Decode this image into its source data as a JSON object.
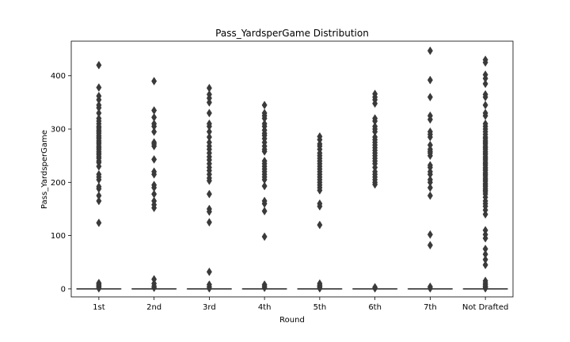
{
  "chart_data": {
    "type": "box",
    "title": "Pass_YardsperGame Distribution",
    "xlabel": "Round",
    "ylabel": "Pass_YardsperGame",
    "ylim": [
      -15,
      465
    ],
    "yticks": [
      0,
      100,
      200,
      300,
      400
    ],
    "categories": [
      "1st",
      "2nd",
      "3rd",
      "4th",
      "5th",
      "6th",
      "7th",
      "Not Drafted"
    ],
    "box_color": "#3a3a3a",
    "grid": false,
    "legend": "none",
    "boxes": [
      {
        "category": "1st",
        "q1": 0,
        "median": 0,
        "q3": 0,
        "whisker_low": 0,
        "whisker_high": 0,
        "outliers": [
          1,
          3,
          5,
          7,
          9,
          11,
          124,
          165,
          175,
          188,
          192,
          205,
          210,
          215,
          230,
          237,
          240,
          245,
          248,
          252,
          255,
          258,
          262,
          265,
          268,
          272,
          275,
          278,
          282,
          285,
          288,
          292,
          295,
          298,
          302,
          305,
          310,
          315,
          320,
          330,
          340,
          345,
          355,
          362,
          378,
          420
        ]
      },
      {
        "category": "2nd",
        "q1": 0,
        "median": 0,
        "q3": 0,
        "whisker_low": 0,
        "whisker_high": 0,
        "outliers": [
          2,
          5,
          10,
          18,
          152,
          158,
          165,
          178,
          190,
          195,
          215,
          220,
          243,
          268,
          272,
          275,
          295,
          305,
          310,
          322,
          335,
          390
        ]
      },
      {
        "category": "3rd",
        "q1": 0,
        "median": 0,
        "q3": 0,
        "whisker_low": 0,
        "whisker_high": 0,
        "outliers": [
          1,
          4,
          8,
          32,
          125,
          145,
          150,
          178,
          203,
          208,
          215,
          222,
          228,
          235,
          242,
          248,
          255,
          262,
          268,
          275,
          285,
          295,
          305,
          310,
          330,
          350,
          358,
          365,
          377
        ]
      },
      {
        "category": "4th",
        "q1": 0,
        "median": 0,
        "q3": 0,
        "whisker_low": 0,
        "whisker_high": 0,
        "outliers": [
          2,
          5,
          8,
          98,
          146,
          160,
          165,
          193,
          205,
          210,
          215,
          220,
          225,
          230,
          235,
          240,
          258,
          262,
          268,
          275,
          282,
          288,
          292,
          298,
          305,
          310,
          320,
          325,
          330,
          345
        ]
      },
      {
        "category": "5th",
        "q1": 0,
        "median": 0,
        "q3": 0,
        "whisker_low": 0,
        "whisker_high": 0,
        "outliers": [
          1,
          3,
          5,
          7,
          10,
          120,
          155,
          160,
          185,
          190,
          195,
          200,
          205,
          210,
          215,
          220,
          225,
          230,
          235,
          240,
          245,
          250,
          255,
          262,
          268,
          272,
          280,
          286
        ]
      },
      {
        "category": "6th",
        "q1": 0,
        "median": 0,
        "q3": 0,
        "whisker_low": 0,
        "whisker_high": 0,
        "outliers": [
          1,
          3,
          196,
          200,
          205,
          210,
          215,
          220,
          228,
          235,
          240,
          245,
          250,
          255,
          260,
          265,
          270,
          275,
          280,
          285,
          295,
          300,
          305,
          315,
          320,
          348,
          355,
          360,
          366
        ]
      },
      {
        "category": "7th",
        "q1": 0,
        "median": 0,
        "q3": 0,
        "whisker_low": 0,
        "whisker_high": 0,
        "outliers": [
          1,
          4,
          82,
          102,
          175,
          190,
          200,
          205,
          215,
          220,
          228,
          232,
          250,
          255,
          258,
          262,
          270,
          285,
          290,
          295,
          318,
          325,
          360,
          392,
          447
        ]
      },
      {
        "category": "Not Drafted",
        "q1": 0,
        "median": 0,
        "q3": 0,
        "whisker_low": 0,
        "whisker_high": 0,
        "outliers": [
          1,
          3,
          5,
          8,
          11,
          15,
          45,
          55,
          65,
          75,
          95,
          102,
          110,
          140,
          148,
          155,
          160,
          165,
          172,
          178,
          182,
          185,
          188,
          192,
          195,
          198,
          202,
          205,
          208,
          212,
          215,
          218,
          222,
          225,
          228,
          232,
          235,
          238,
          242,
          245,
          248,
          252,
          255,
          258,
          262,
          265,
          268,
          272,
          275,
          278,
          282,
          285,
          290,
          295,
          300,
          305,
          310,
          325,
          330,
          345,
          360,
          365,
          385,
          395,
          402,
          425,
          430
        ]
      }
    ]
  }
}
